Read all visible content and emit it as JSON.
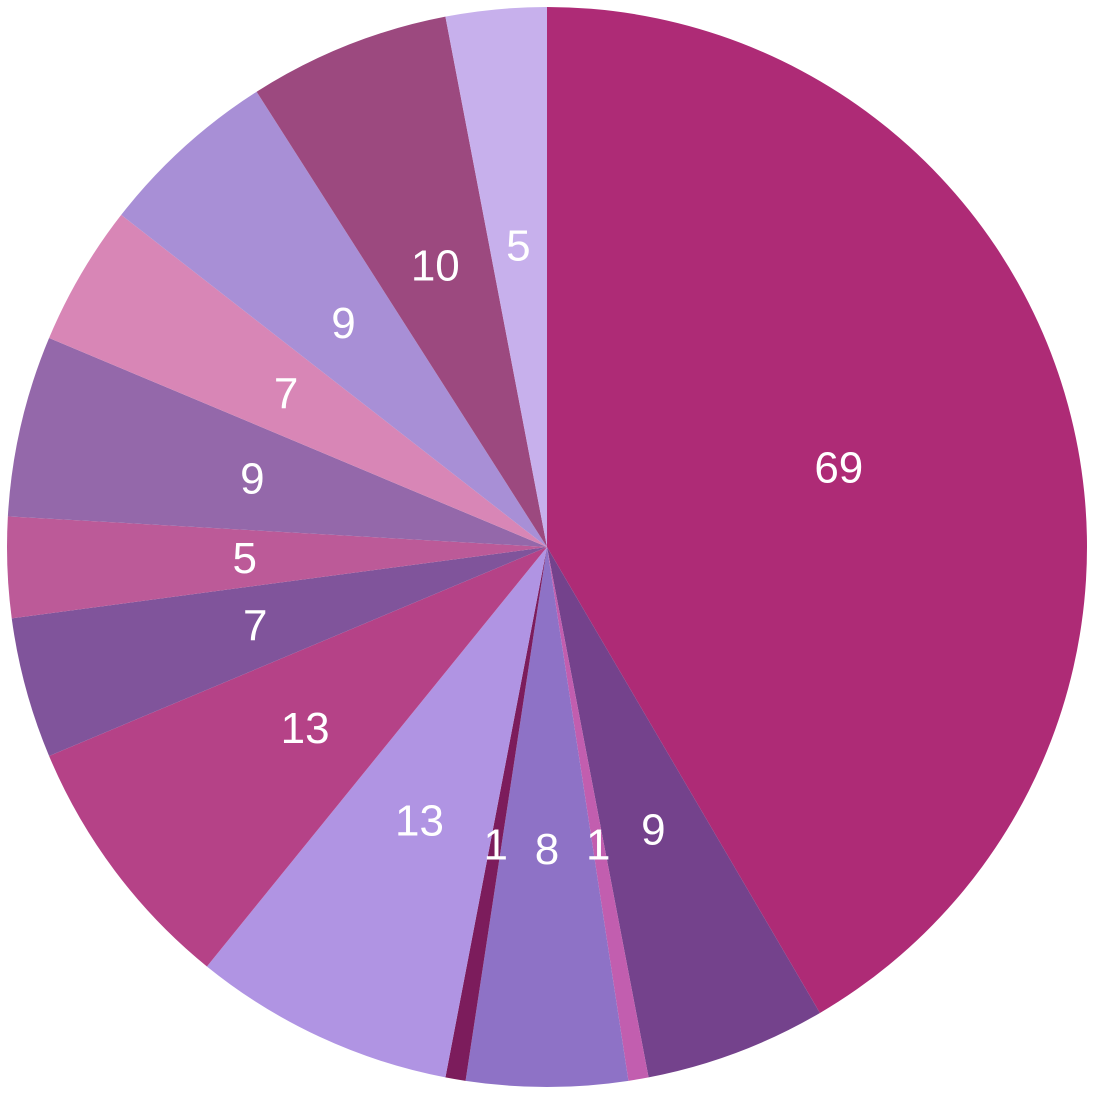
{
  "chart_data": {
    "type": "pie",
    "start_angle": "top",
    "direction": "clockwise",
    "show_values": true,
    "legend": "none",
    "slices": [
      {
        "value": 69,
        "label": "69",
        "color": "#AE2B76"
      },
      {
        "value": 9,
        "label": "9",
        "color": "#74428C"
      },
      {
        "value": 1,
        "label": "1",
        "color": "#C25EAF"
      },
      {
        "value": 8,
        "label": "8",
        "color": "#8E72C6"
      },
      {
        "value": 1,
        "label": "1",
        "color": "#7C1C5C"
      },
      {
        "value": 13,
        "label": "13",
        "color": "#B094E3"
      },
      {
        "value": 13,
        "label": "13",
        "color": "#B54287"
      },
      {
        "value": 7,
        "label": "7",
        "color": "#80549B"
      },
      {
        "value": 5,
        "label": "5",
        "color": "#BC5A98"
      },
      {
        "value": 9,
        "label": "9",
        "color": "#9468AA"
      },
      {
        "value": 7,
        "label": "7",
        "color": "#D886B6"
      },
      {
        "value": 9,
        "label": "9",
        "color": "#A88FD6"
      },
      {
        "value": 10,
        "label": "10",
        "color": "#9C497F"
      },
      {
        "value": 5,
        "label": "5",
        "color": "#C7B0EC"
      }
    ]
  }
}
